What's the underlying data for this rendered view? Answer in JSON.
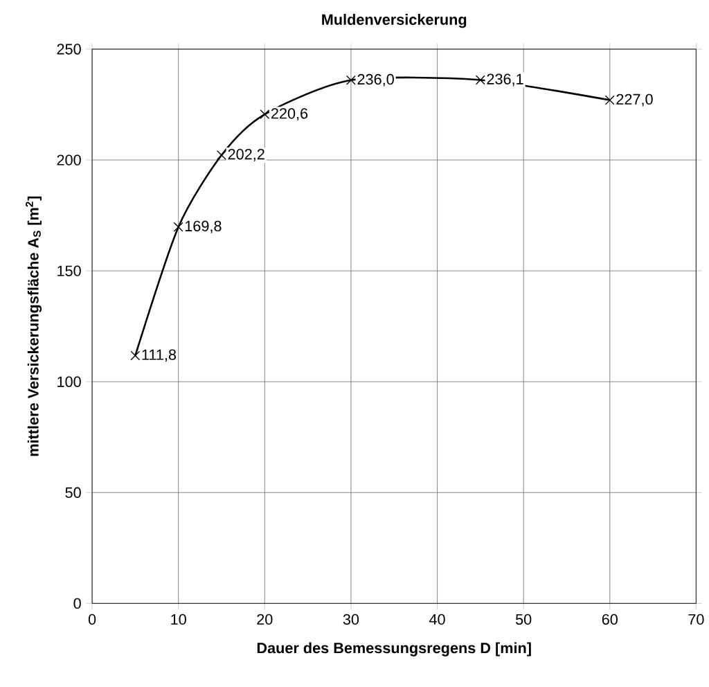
{
  "chart_data": {
    "type": "line",
    "title": "Muldenversickerung",
    "xlabel": "Dauer des Bemessungsregens  D [min]",
    "ylabel": "mittlere Versickerungsfläche A$_{S}$ [m$^{2}$]",
    "x": [
      5,
      10,
      15,
      20,
      30,
      45,
      60
    ],
    "values": [
      111.8,
      169.8,
      202.2,
      220.6,
      236.0,
      236.1,
      227.0
    ],
    "value_labels": [
      "111,8",
      "169,8",
      "202,2",
      "220,6",
      "236,0",
      "236,1",
      "227,0"
    ],
    "color": "#000000",
    "xlim": [
      0,
      70
    ],
    "ylim": [
      0,
      250
    ],
    "xticks": [
      0,
      10,
      20,
      30,
      40,
      50,
      60,
      70
    ],
    "yticks": [
      0,
      50,
      100,
      150,
      200,
      250
    ],
    "grid": true,
    "marker": "cross",
    "line_style": "solid"
  }
}
